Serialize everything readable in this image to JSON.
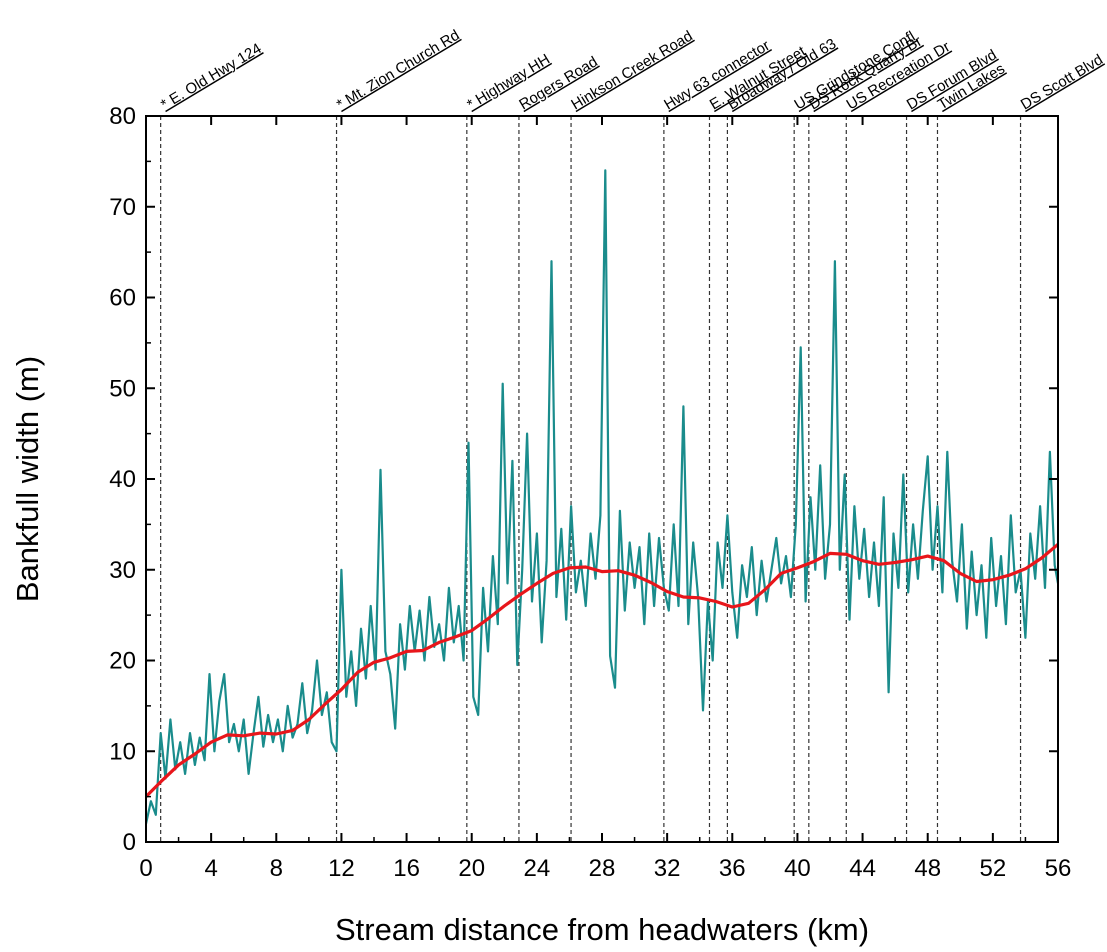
{
  "chart_data": {
    "type": "line",
    "xlabel": "Stream distance from headwaters (km)",
    "ylabel": "Bankfull width (m)",
    "xlim": [
      0,
      56
    ],
    "ylim": [
      0,
      80
    ],
    "x_ticks": [
      0,
      4,
      8,
      12,
      16,
      20,
      24,
      28,
      32,
      36,
      40,
      44,
      48,
      52,
      56
    ],
    "y_ticks": [
      0,
      10,
      20,
      30,
      40,
      50,
      60,
      70,
      80
    ],
    "grid": false,
    "legend": "none",
    "colors": {
      "raw": "#1a8c8c",
      "smoothed": "#e8161b",
      "markers": "#333333"
    },
    "locations": [
      {
        "km": 0.9,
        "label": "* E. Old Hwy 124"
      },
      {
        "km": 11.7,
        "label": "* Mt. Zion Church Rd"
      },
      {
        "km": 19.7,
        "label": "* Highway HH"
      },
      {
        "km": 22.9,
        "label": "Rogers Road"
      },
      {
        "km": 26.1,
        "label": "Hinkson Creek Road"
      },
      {
        "km": 31.8,
        "label": "Hwy 63 connector"
      },
      {
        "km": 34.6,
        "label": "E. Walnut Street"
      },
      {
        "km": 35.7,
        "label": "Broadway / Old 63"
      },
      {
        "km": 39.8,
        "label": "US Grindstone Confl"
      },
      {
        "km": 40.7,
        "label": "DS Rock Quarry Br"
      },
      {
        "km": 43.0,
        "label": "US Recreation Dr"
      },
      {
        "km": 46.7,
        "label": "DS Forum Blvd"
      },
      {
        "km": 48.6,
        "label": "Twin Lakes"
      },
      {
        "km": 53.7,
        "label": "DS Scott Blvd"
      }
    ],
    "series": [
      {
        "values": [
          [
            0.0,
            2.0
          ],
          [
            0.3,
            4.5
          ],
          [
            0.6,
            3.0
          ],
          [
            0.9,
            12.0
          ],
          [
            1.2,
            7.0
          ],
          [
            1.5,
            13.5
          ],
          [
            1.8,
            8.0
          ],
          [
            2.1,
            11.0
          ],
          [
            2.4,
            7.5
          ],
          [
            2.7,
            12.0
          ],
          [
            3.0,
            8.5
          ],
          [
            3.3,
            11.5
          ],
          [
            3.6,
            9.0
          ],
          [
            3.9,
            18.5
          ],
          [
            4.2,
            10.0
          ],
          [
            4.5,
            15.5
          ],
          [
            4.8,
            18.5
          ],
          [
            5.1,
            11.0
          ],
          [
            5.4,
            13.0
          ],
          [
            5.7,
            10.0
          ],
          [
            6.0,
            13.5
          ],
          [
            6.3,
            7.5
          ],
          [
            6.6,
            12.0
          ],
          [
            6.9,
            16.0
          ],
          [
            7.2,
            10.5
          ],
          [
            7.5,
            14.0
          ],
          [
            7.8,
            11.0
          ],
          [
            8.1,
            13.5
          ],
          [
            8.4,
            10.0
          ],
          [
            8.7,
            15.0
          ],
          [
            9.0,
            11.5
          ],
          [
            9.3,
            13.0
          ],
          [
            9.6,
            17.5
          ],
          [
            9.9,
            12.0
          ],
          [
            10.2,
            14.5
          ],
          [
            10.5,
            20.0
          ],
          [
            10.8,
            14.0
          ],
          [
            11.1,
            16.5
          ],
          [
            11.4,
            11.0
          ],
          [
            11.7,
            10.0
          ],
          [
            12.0,
            30.0
          ],
          [
            12.3,
            16.0
          ],
          [
            12.6,
            21.0
          ],
          [
            12.9,
            15.0
          ],
          [
            13.2,
            23.5
          ],
          [
            13.5,
            18.0
          ],
          [
            13.8,
            26.0
          ],
          [
            14.1,
            19.0
          ],
          [
            14.4,
            41.0
          ],
          [
            14.7,
            21.0
          ],
          [
            15.0,
            18.5
          ],
          [
            15.3,
            12.5
          ],
          [
            15.6,
            24.0
          ],
          [
            15.9,
            19.0
          ],
          [
            16.2,
            26.0
          ],
          [
            16.5,
            21.0
          ],
          [
            16.8,
            25.5
          ],
          [
            17.1,
            20.0
          ],
          [
            17.4,
            27.0
          ],
          [
            17.7,
            21.5
          ],
          [
            18.0,
            24.0
          ],
          [
            18.3,
            20.0
          ],
          [
            18.6,
            28.0
          ],
          [
            18.9,
            22.0
          ],
          [
            19.2,
            26.0
          ],
          [
            19.5,
            20.0
          ],
          [
            19.8,
            44.0
          ],
          [
            20.1,
            16.0
          ],
          [
            20.4,
            14.0
          ],
          [
            20.7,
            28.0
          ],
          [
            21.0,
            21.0
          ],
          [
            21.3,
            31.5
          ],
          [
            21.6,
            24.0
          ],
          [
            21.9,
            50.5
          ],
          [
            22.2,
            28.5
          ],
          [
            22.5,
            42.0
          ],
          [
            22.8,
            19.5
          ],
          [
            23.1,
            30.0
          ],
          [
            23.4,
            45.0
          ],
          [
            23.7,
            26.5
          ],
          [
            24.0,
            34.0
          ],
          [
            24.3,
            22.0
          ],
          [
            24.6,
            31.0
          ],
          [
            24.9,
            64.0
          ],
          [
            25.2,
            27.0
          ],
          [
            25.5,
            34.5
          ],
          [
            25.8,
            24.5
          ],
          [
            26.1,
            37.0
          ],
          [
            26.4,
            27.5
          ],
          [
            26.7,
            31.0
          ],
          [
            27.0,
            26.0
          ],
          [
            27.3,
            34.0
          ],
          [
            27.6,
            29.0
          ],
          [
            27.9,
            36.0
          ],
          [
            28.2,
            74.0
          ],
          [
            28.5,
            20.5
          ],
          [
            28.8,
            17.0
          ],
          [
            29.1,
            36.5
          ],
          [
            29.4,
            25.5
          ],
          [
            29.7,
            33.0
          ],
          [
            30.0,
            28.0
          ],
          [
            30.3,
            32.5
          ],
          [
            30.6,
            24.0
          ],
          [
            30.9,
            34.0
          ],
          [
            31.2,
            26.0
          ],
          [
            31.5,
            33.5
          ],
          [
            31.8,
            28.0
          ],
          [
            32.1,
            25.5
          ],
          [
            32.4,
            35.0
          ],
          [
            32.7,
            26.0
          ],
          [
            33.0,
            48.0
          ],
          [
            33.3,
            24.0
          ],
          [
            33.6,
            33.0
          ],
          [
            33.9,
            27.0
          ],
          [
            34.2,
            14.5
          ],
          [
            34.5,
            26.5
          ],
          [
            34.8,
            20.0
          ],
          [
            35.1,
            33.0
          ],
          [
            35.4,
            28.0
          ],
          [
            35.7,
            36.0
          ],
          [
            36.0,
            27.5
          ],
          [
            36.3,
            22.5
          ],
          [
            36.6,
            30.5
          ],
          [
            36.9,
            27.0
          ],
          [
            37.2,
            32.5
          ],
          [
            37.5,
            25.0
          ],
          [
            37.8,
            31.0
          ],
          [
            38.1,
            26.5
          ],
          [
            38.4,
            30.0
          ],
          [
            38.7,
            33.5
          ],
          [
            39.0,
            28.5
          ],
          [
            39.3,
            31.5
          ],
          [
            39.6,
            27.0
          ],
          [
            39.9,
            35.0
          ],
          [
            40.2,
            54.5
          ],
          [
            40.5,
            26.5
          ],
          [
            40.8,
            38.0
          ],
          [
            41.1,
            30.0
          ],
          [
            41.4,
            41.5
          ],
          [
            41.7,
            29.0
          ],
          [
            42.0,
            35.0
          ],
          [
            42.3,
            64.0
          ],
          [
            42.6,
            30.0
          ],
          [
            42.9,
            40.5
          ],
          [
            43.2,
            24.5
          ],
          [
            43.5,
            37.0
          ],
          [
            43.8,
            29.0
          ],
          [
            44.1,
            34.5
          ],
          [
            44.4,
            27.0
          ],
          [
            44.7,
            33.0
          ],
          [
            45.0,
            26.0
          ],
          [
            45.3,
            38.0
          ],
          [
            45.6,
            16.5
          ],
          [
            45.9,
            34.0
          ],
          [
            46.2,
            28.0
          ],
          [
            46.5,
            40.5
          ],
          [
            46.8,
            27.5
          ],
          [
            47.1,
            35.0
          ],
          [
            47.4,
            29.0
          ],
          [
            47.7,
            36.5
          ],
          [
            48.0,
            42.5
          ],
          [
            48.3,
            30.0
          ],
          [
            48.6,
            37.0
          ],
          [
            48.9,
            27.5
          ],
          [
            49.2,
            43.0
          ],
          [
            49.5,
            31.0
          ],
          [
            49.8,
            26.5
          ],
          [
            50.1,
            35.0
          ],
          [
            50.4,
            23.5
          ],
          [
            50.7,
            32.0
          ],
          [
            51.0,
            25.0
          ],
          [
            51.3,
            30.5
          ],
          [
            51.6,
            22.5
          ],
          [
            51.9,
            33.5
          ],
          [
            52.2,
            26.0
          ],
          [
            52.5,
            31.5
          ],
          [
            52.8,
            24.0
          ],
          [
            53.1,
            36.0
          ],
          [
            53.4,
            27.5
          ],
          [
            53.7,
            30.0
          ],
          [
            54.0,
            22.5
          ],
          [
            54.3,
            34.0
          ],
          [
            54.6,
            29.0
          ],
          [
            54.9,
            37.0
          ],
          [
            55.2,
            28.0
          ],
          [
            55.5,
            43.0
          ],
          [
            55.8,
            30.5
          ],
          [
            56.0,
            28.5
          ]
        ]
      },
      {
        "values": [
          [
            0.0,
            5.0
          ],
          [
            1.0,
            6.8
          ],
          [
            2.0,
            8.5
          ],
          [
            3.0,
            9.7
          ],
          [
            4.0,
            11.0
          ],
          [
            5.0,
            11.8
          ],
          [
            6.0,
            11.7
          ],
          [
            7.0,
            12.0
          ],
          [
            8.0,
            11.9
          ],
          [
            9.0,
            12.3
          ],
          [
            10.0,
            13.5
          ],
          [
            11.0,
            15.2
          ],
          [
            12.0,
            16.8
          ],
          [
            13.0,
            18.7
          ],
          [
            14.0,
            19.8
          ],
          [
            15.0,
            20.3
          ],
          [
            16.0,
            21.0
          ],
          [
            17.0,
            21.1
          ],
          [
            18.0,
            22.0
          ],
          [
            19.0,
            22.6
          ],
          [
            20.0,
            23.3
          ],
          [
            21.0,
            24.6
          ],
          [
            22.0,
            26.0
          ],
          [
            23.0,
            27.3
          ],
          [
            24.0,
            28.5
          ],
          [
            25.0,
            29.6
          ],
          [
            26.0,
            30.2
          ],
          [
            27.0,
            30.3
          ],
          [
            28.0,
            29.8
          ],
          [
            29.0,
            29.9
          ],
          [
            30.0,
            29.4
          ],
          [
            31.0,
            28.6
          ],
          [
            32.0,
            27.6
          ],
          [
            33.0,
            27.0
          ],
          [
            34.0,
            26.9
          ],
          [
            35.0,
            26.5
          ],
          [
            36.0,
            25.9
          ],
          [
            37.0,
            26.3
          ],
          [
            38.0,
            27.8
          ],
          [
            39.0,
            29.6
          ],
          [
            40.0,
            30.2
          ],
          [
            41.0,
            30.9
          ],
          [
            42.0,
            31.8
          ],
          [
            43.0,
            31.7
          ],
          [
            44.0,
            31.0
          ],
          [
            45.0,
            30.6
          ],
          [
            46.0,
            30.8
          ],
          [
            47.0,
            31.1
          ],
          [
            48.0,
            31.5
          ],
          [
            49.0,
            31.0
          ],
          [
            50.0,
            29.6
          ],
          [
            51.0,
            28.7
          ],
          [
            52.0,
            28.9
          ],
          [
            53.0,
            29.4
          ],
          [
            54.0,
            30.1
          ],
          [
            55.0,
            31.3
          ],
          [
            56.0,
            32.8
          ]
        ]
      }
    ]
  }
}
